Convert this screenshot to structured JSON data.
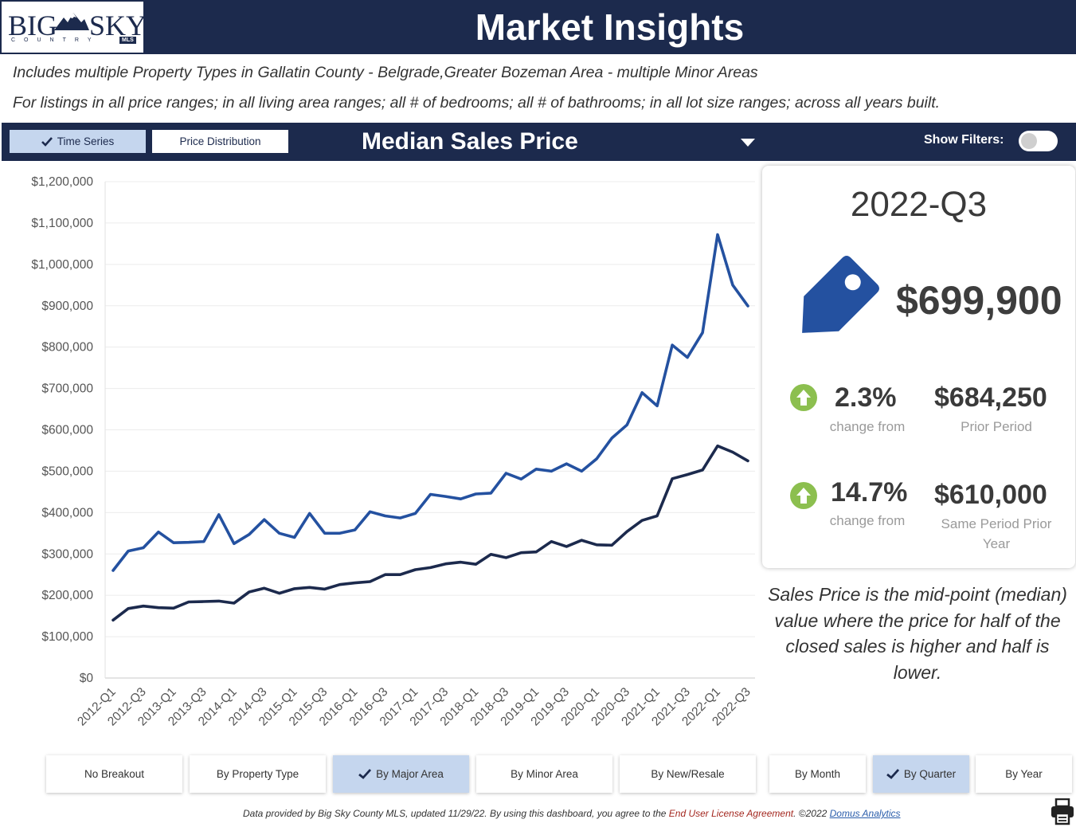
{
  "header": {
    "logo_big": "BIG",
    "logo_sky": "SKY",
    "logo_sub": "COUNTRY",
    "logo_mls": "MLS",
    "title": "Market Insights"
  },
  "subtitle_1": "Includes multiple Property Types in Gallatin County - Belgrade,Greater Bozeman Area - multiple Minor Areas",
  "subtitle_2": "For listings in all price ranges; in all living area ranges; all # of bedrooms; all # of bathrooms; in all lot size ranges; across all years built.",
  "controls": {
    "time_series": "Time Series",
    "price_distribution": "Price Distribution",
    "measure": "Median Sales Price",
    "show_filters": "Show Filters:"
  },
  "colors": {
    "navy": "#1c2a4d",
    "series_blue": "#2451a0",
    "series_dark": "#1c2a4d",
    "arrow_green": "#8cbf4f",
    "active_button": "#c5d6ee"
  },
  "chart_data": {
    "type": "line",
    "ylim": [
      0,
      1200000
    ],
    "y_ticks": [
      "$0",
      "$100,000",
      "$200,000",
      "$300,000",
      "$400,000",
      "$500,000",
      "$600,000",
      "$700,000",
      "$800,000",
      "$900,000",
      "$1,000,000",
      "$1,100,000",
      "$1,200,000"
    ],
    "x": [
      "2012-Q1",
      "2012-Q2",
      "2012-Q3",
      "2012-Q4",
      "2013-Q1",
      "2013-Q2",
      "2013-Q3",
      "2013-Q4",
      "2014-Q1",
      "2014-Q2",
      "2014-Q3",
      "2014-Q4",
      "2015-Q1",
      "2015-Q2",
      "2015-Q3",
      "2015-Q4",
      "2016-Q1",
      "2016-Q2",
      "2016-Q3",
      "2016-Q4",
      "2017-Q1",
      "2017-Q2",
      "2017-Q3",
      "2017-Q4",
      "2018-Q1",
      "2018-Q2",
      "2018-Q3",
      "2018-Q4",
      "2019-Q1",
      "2019-Q2",
      "2019-Q3",
      "2019-Q4",
      "2020-Q1",
      "2020-Q2",
      "2020-Q3",
      "2020-Q4",
      "2021-Q1",
      "2021-Q2",
      "2021-Q3",
      "2021-Q4",
      "2022-Q1",
      "2022-Q2",
      "2022-Q3"
    ],
    "x_tick_labels": [
      "2012-Q1",
      "2012-Q3",
      "2013-Q1",
      "2013-Q3",
      "2014-Q1",
      "2014-Q3",
      "2015-Q1",
      "2015-Q3",
      "2016-Q1",
      "2016-Q3",
      "2017-Q1",
      "2017-Q3",
      "2018-Q1",
      "2018-Q3",
      "2019-Q1",
      "2019-Q3",
      "2020-Q1",
      "2020-Q3",
      "2021-Q1",
      "2021-Q3",
      "2022-Q1",
      "2022-Q3"
    ],
    "series": [
      {
        "color": "#2451a0",
        "values": [
          260000,
          307000,
          315000,
          353000,
          327000,
          328000,
          330000,
          395000,
          325000,
          347000,
          383000,
          350000,
          340000,
          398000,
          350000,
          350000,
          358000,
          402000,
          392000,
          387000,
          398000,
          444000,
          439000,
          433000,
          445000,
          447000,
          495000,
          481000,
          505000,
          500000,
          518000,
          500000,
          530000,
          580000,
          612000,
          690000,
          658000,
          805000,
          775000,
          835000,
          1072000,
          950000,
          899500
        ]
      },
      {
        "color": "#1c2a4d",
        "values": [
          140000,
          168000,
          174000,
          170000,
          169000,
          184000,
          185000,
          186000,
          181000,
          208000,
          217000,
          205000,
          216000,
          219000,
          215000,
          226000,
          230000,
          233000,
          250000,
          250000,
          262000,
          267000,
          276000,
          280000,
          275000,
          299000,
          291000,
          303000,
          305000,
          330000,
          318000,
          333000,
          322000,
          321000,
          354000,
          381000,
          392000,
          482000,
          492000,
          503000,
          561000,
          546000,
          525000
        ]
      }
    ]
  },
  "card": {
    "period": "2022-Q3",
    "price": "$699,900",
    "stat1_pct": "2.3%",
    "stat1_cap": "change from",
    "stat1_val": "$684,250",
    "stat1_val_cap": "Prior Period",
    "stat2_pct": "14.7%",
    "stat2_cap": "change from",
    "stat2_val": "$610,000",
    "stat2_val_cap": "Same Period Prior Year"
  },
  "explain": "Sales Price is the mid-point (median) value where the price for half of the closed sales is higher and half is lower.",
  "breakouts": {
    "no_breakout": "No Breakout",
    "by_property_type": "By Property Type",
    "by_major_area": "By Major Area",
    "by_minor_area": "By Minor Area",
    "by_new_resale": "By New/Resale",
    "by_month": "By Month",
    "by_quarter": "By Quarter",
    "by_year": "By Year"
  },
  "footer": {
    "text": "Data provided by Big Sky County MLS, updated 11/29/22.  By using this dashboard, you agree to the ",
    "eula": "End User License Agreement",
    "copy": ".  ©2022 ",
    "link": "Domus Analytics"
  }
}
